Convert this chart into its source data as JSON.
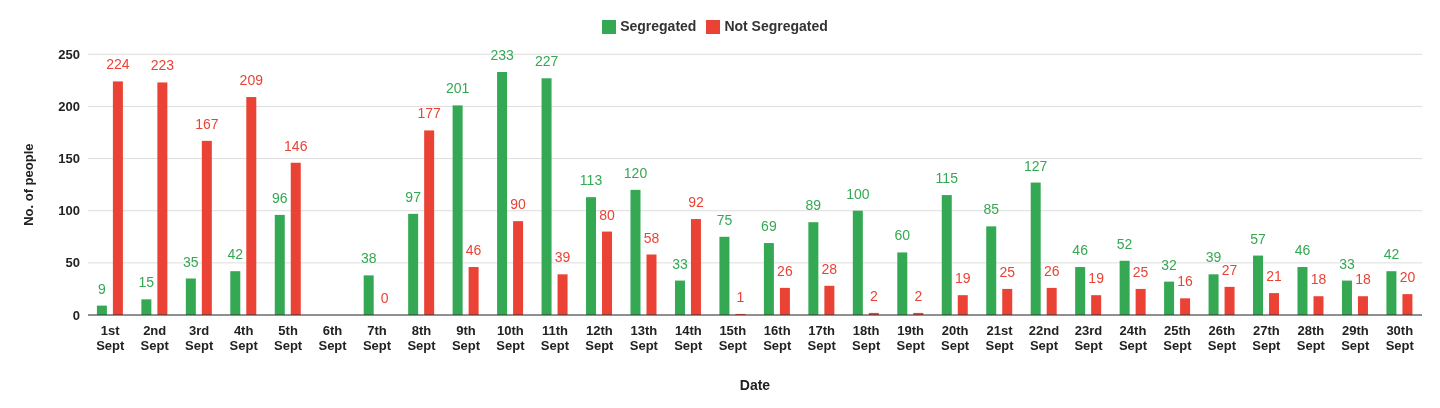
{
  "chart_data": {
    "type": "bar",
    "xlabel": "Date",
    "ylabel": "No. of people",
    "categories": [
      "1st Sept",
      "2nd Sept",
      "3rd Sept",
      "4th Sept",
      "5th Sept",
      "6th Sept",
      "7th Sept",
      "8th Sept",
      "9th Sept",
      "10th Sept",
      "11th Sept",
      "12th Sept",
      "13th Sept",
      "14th Sept",
      "15th Sept",
      "16th Sept",
      "17th Sept",
      "18th Sept",
      "19th Sept",
      "20th Sept",
      "21st Sept",
      "22nd Sept",
      "23rd Sept",
      "24th Sept",
      "25th Sept",
      "26th Sept",
      "27th Sept",
      "28th Sept",
      "29th Sept",
      "30th Sept"
    ],
    "series": [
      {
        "name": "Segregated",
        "color": "#34a853",
        "values": [
          9,
          15,
          35,
          42,
          96,
          null,
          38,
          97,
          201,
          233,
          227,
          113,
          120,
          33,
          75,
          69,
          89,
          100,
          60,
          115,
          85,
          127,
          46,
          52,
          32,
          39,
          57,
          46,
          33,
          42
        ]
      },
      {
        "name": "Not Segregated",
        "color": "#ea4335",
        "values": [
          224,
          223,
          167,
          209,
          146,
          null,
          0,
          177,
          46,
          90,
          39,
          80,
          58,
          92,
          1,
          26,
          28,
          2,
          2,
          19,
          25,
          26,
          19,
          25,
          16,
          27,
          21,
          18,
          18,
          20
        ]
      }
    ],
    "ylim": [
      0,
      250
    ],
    "yticks": [
      0,
      50,
      100,
      150,
      200,
      250
    ],
    "grid": "y",
    "legend": "top",
    "data_labels": true
  }
}
